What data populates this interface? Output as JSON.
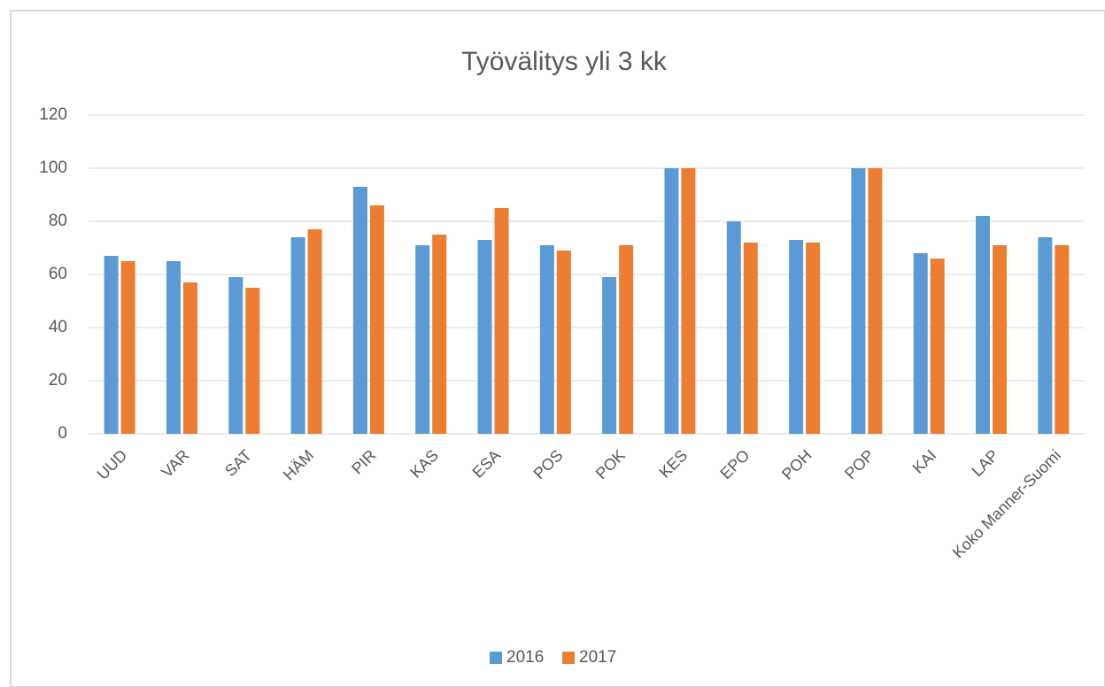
{
  "chart_data": {
    "type": "bar",
    "title": "Työvälitys yli 3 kk",
    "categories": [
      "UUD",
      "VAR",
      "SAT",
      "HÄM",
      "PIR",
      "KAS",
      "ESA",
      "POS",
      "POK",
      "KES",
      "EPO",
      "POH",
      "POP",
      "KAI",
      "LAP",
      "Koko Manner-Suomi"
    ],
    "series": [
      {
        "name": "2016",
        "color": "#5b9bd5",
        "values": [
          67,
          65,
          59,
          74,
          93,
          71,
          73,
          71,
          59,
          100,
          80,
          73,
          100,
          68,
          82,
          74
        ]
      },
      {
        "name": "2017",
        "color": "#ed7d31",
        "values": [
          65,
          57,
          55,
          77,
          86,
          75,
          85,
          69,
          71,
          100,
          72,
          72,
          100,
          66,
          71,
          71
        ]
      }
    ],
    "ylim": [
      0,
      120
    ],
    "yticks": [
      0,
      20,
      40,
      60,
      80,
      100,
      120
    ],
    "grid": true,
    "legend": "bottom"
  }
}
